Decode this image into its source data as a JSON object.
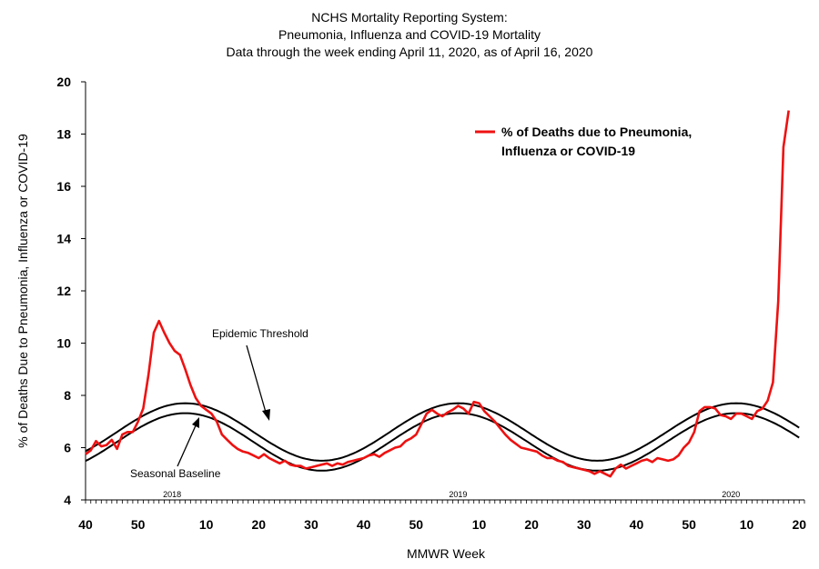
{
  "chart_data": {
    "type": "line",
    "title": [
      "NCHS Mortality Reporting System:",
      "Pneumonia, Influenza and COVID-19 Mortality",
      "Data through the week ending April 11, 2020, as of April 16, 2020"
    ],
    "xlabel": "MMWR Week",
    "ylabel": "% of Deaths Due to Pneumonia, Influenza or  COVID-19",
    "ylim": [
      4,
      20
    ],
    "yticks": [
      4,
      6,
      8,
      10,
      12,
      14,
      16,
      18,
      20
    ],
    "xlim": [
      0,
      137
    ],
    "xticks": [
      {
        "x": 0,
        "label": "40"
      },
      {
        "x": 10,
        "label": "50"
      },
      {
        "x": 23,
        "label": "10"
      },
      {
        "x": 33,
        "label": "20"
      },
      {
        "x": 43,
        "label": "30"
      },
      {
        "x": 53,
        "label": "40"
      },
      {
        "x": 63,
        "label": "50"
      },
      {
        "x": 75,
        "label": "10"
      },
      {
        "x": 85,
        "label": "20"
      },
      {
        "x": 95,
        "label": "30"
      },
      {
        "x": 105,
        "label": "40"
      },
      {
        "x": 115,
        "label": "50"
      },
      {
        "x": 126,
        "label": "10"
      },
      {
        "x": 136,
        "label": "20"
      }
    ],
    "year_labels": [
      {
        "x": 16.5,
        "label": "2018"
      },
      {
        "x": 71,
        "label": "2019"
      },
      {
        "x": 123,
        "label": "2020"
      }
    ],
    "legend": {
      "label_line1": "% of Deaths due to Pneumonia,",
      "label_line2": "Influenza or COVID-19",
      "position": "top-right"
    },
    "annotations": {
      "threshold": "Epidemic Threshold",
      "baseline": "Seasonal Baseline"
    },
    "series": [
      {
        "name": "% of Deaths due to Pneumonia, Influenza or COVID-19",
        "color": "#ee1111",
        "x": [
          0,
          1,
          2,
          3,
          4,
          5,
          6,
          7,
          8,
          9,
          10,
          11,
          12,
          13,
          14,
          15,
          16,
          17,
          18,
          19,
          20,
          21,
          22,
          23,
          24,
          25,
          26,
          27,
          28,
          29,
          30,
          31,
          32,
          33,
          34,
          35,
          36,
          37,
          38,
          39,
          40,
          41,
          42,
          43,
          44,
          45,
          46,
          47,
          48,
          49,
          50,
          51,
          52,
          53,
          54,
          55,
          56,
          57,
          58,
          59,
          60,
          61,
          62,
          63,
          64,
          65,
          66,
          67,
          68,
          69,
          70,
          71,
          72,
          73,
          74,
          75,
          76,
          77,
          78,
          79,
          80,
          81,
          82,
          83,
          84,
          85,
          86,
          87,
          88,
          89,
          90,
          91,
          92,
          93,
          94,
          95,
          96,
          97,
          98,
          99,
          100,
          101,
          102,
          103,
          104,
          105,
          106,
          107,
          108,
          109,
          110,
          111,
          112,
          113,
          114,
          115,
          116,
          117,
          118,
          119,
          120,
          121,
          122,
          123,
          124,
          125,
          126,
          127,
          128,
          129,
          130,
          131,
          132,
          133,
          134
        ],
        "y": [
          5.75,
          5.9,
          6.25,
          6.05,
          6.1,
          6.3,
          5.95,
          6.5,
          6.6,
          6.6,
          7.0,
          7.5,
          8.8,
          10.4,
          10.85,
          10.4,
          10.0,
          9.7,
          9.55,
          9.0,
          8.4,
          7.9,
          7.6,
          7.45,
          7.3,
          7.0,
          6.5,
          6.3,
          6.1,
          5.95,
          5.85,
          5.8,
          5.7,
          5.6,
          5.75,
          5.6,
          5.5,
          5.4,
          5.5,
          5.35,
          5.3,
          5.3,
          5.2,
          5.25,
          5.3,
          5.35,
          5.4,
          5.3,
          5.4,
          5.35,
          5.45,
          5.5,
          5.55,
          5.6,
          5.7,
          5.75,
          5.65,
          5.8,
          5.9,
          6.0,
          6.05,
          6.25,
          6.35,
          6.5,
          6.9,
          7.3,
          7.45,
          7.3,
          7.2,
          7.35,
          7.45,
          7.6,
          7.5,
          7.3,
          7.75,
          7.7,
          7.4,
          7.2,
          7.0,
          6.75,
          6.5,
          6.3,
          6.15,
          6.0,
          5.95,
          5.9,
          5.85,
          5.7,
          5.6,
          5.6,
          5.5,
          5.45,
          5.3,
          5.25,
          5.2,
          5.15,
          5.1,
          5.0,
          5.1,
          5.0,
          4.9,
          5.2,
          5.35,
          5.2,
          5.3,
          5.4,
          5.5,
          5.55,
          5.45,
          5.6,
          5.55,
          5.5,
          5.55,
          5.7,
          6.0,
          6.2,
          6.6,
          7.4,
          7.55,
          7.55,
          7.5,
          7.25,
          7.2,
          7.1,
          7.3,
          7.3,
          7.2,
          7.1,
          7.4,
          7.5,
          7.8,
          8.5,
          11.6,
          17.5,
          18.9
        ]
      },
      {
        "name": "Epidemic Threshold",
        "color": "#000000",
        "type": "sine",
        "params": {
          "mid": 6.6,
          "amp": 1.1,
          "peak_x": [
            19,
            71,
            124
          ],
          "trough_x": [
            45,
            97.5
          ]
        }
      },
      {
        "name": "Seasonal Baseline",
        "color": "#000000",
        "type": "sine",
        "params": {
          "mid": 6.22,
          "amp": 1.1,
          "peak_x": [
            19,
            71,
            124
          ],
          "trough_x": [
            45,
            97.5
          ]
        }
      }
    ]
  }
}
